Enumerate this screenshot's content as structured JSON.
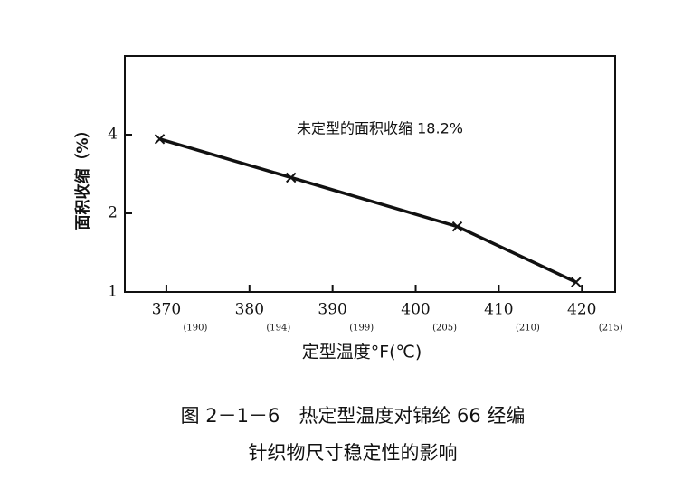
{
  "chart_data": {
    "type": "line",
    "annotation": "未定型的面积收缩 18.2%",
    "x_label": "定型温度°F(℃)",
    "y_label": "面积收缩（%）",
    "caption": [
      "图 2－1－6　热定型温度对锦纶 66 经编",
      "针织物尺寸稳定性的影响"
    ],
    "x": [
      369.2,
      385,
      405,
      419.3
    ],
    "series": [
      {
        "color": "#111111",
        "values": [
          3.85,
          2.74,
          1.78,
          1.09
        ]
      }
    ],
    "xlim": [
      365,
      424
    ],
    "xticks": [
      370,
      380,
      390,
      400,
      410,
      420
    ],
    "xticks_secondary": [
      "(190)",
      "(194)",
      "(199)",
      "(205)",
      "(210)",
      "(215)"
    ],
    "ylim": [
      1,
      8
    ],
    "yticks": [
      1,
      2,
      4
    ],
    "y_log": true
  }
}
